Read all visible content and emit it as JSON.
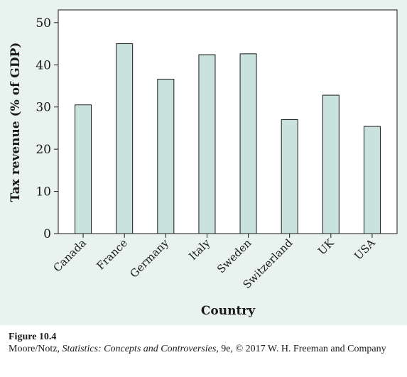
{
  "chart_data": {
    "type": "bar",
    "categories": [
      "Canada",
      "France",
      "Germany",
      "Italy",
      "Sweden",
      "Switzerland",
      "UK",
      "USA"
    ],
    "values": [
      30.5,
      45.0,
      36.6,
      42.4,
      42.6,
      27.0,
      32.8,
      25.4
    ],
    "xlabel": "Country",
    "ylabel": "Tax revenue (% of GDP)",
    "ylim": [
      0,
      53
    ],
    "yticks": [
      0,
      10,
      20,
      30,
      40,
      50
    ],
    "grid": false,
    "legend": "none",
    "bar_color": "#c9e2de",
    "bar_stroke": "#1a1a1a",
    "background": "#e8f2ef"
  },
  "caption": {
    "figure_label": "Figure 10.4",
    "line_before_title": "Moore/Notz, ",
    "book_title": "Statistics: Concepts and Controversies",
    "line_after_title": ", 9e, © 2017 W. H. Freeman and Company"
  }
}
